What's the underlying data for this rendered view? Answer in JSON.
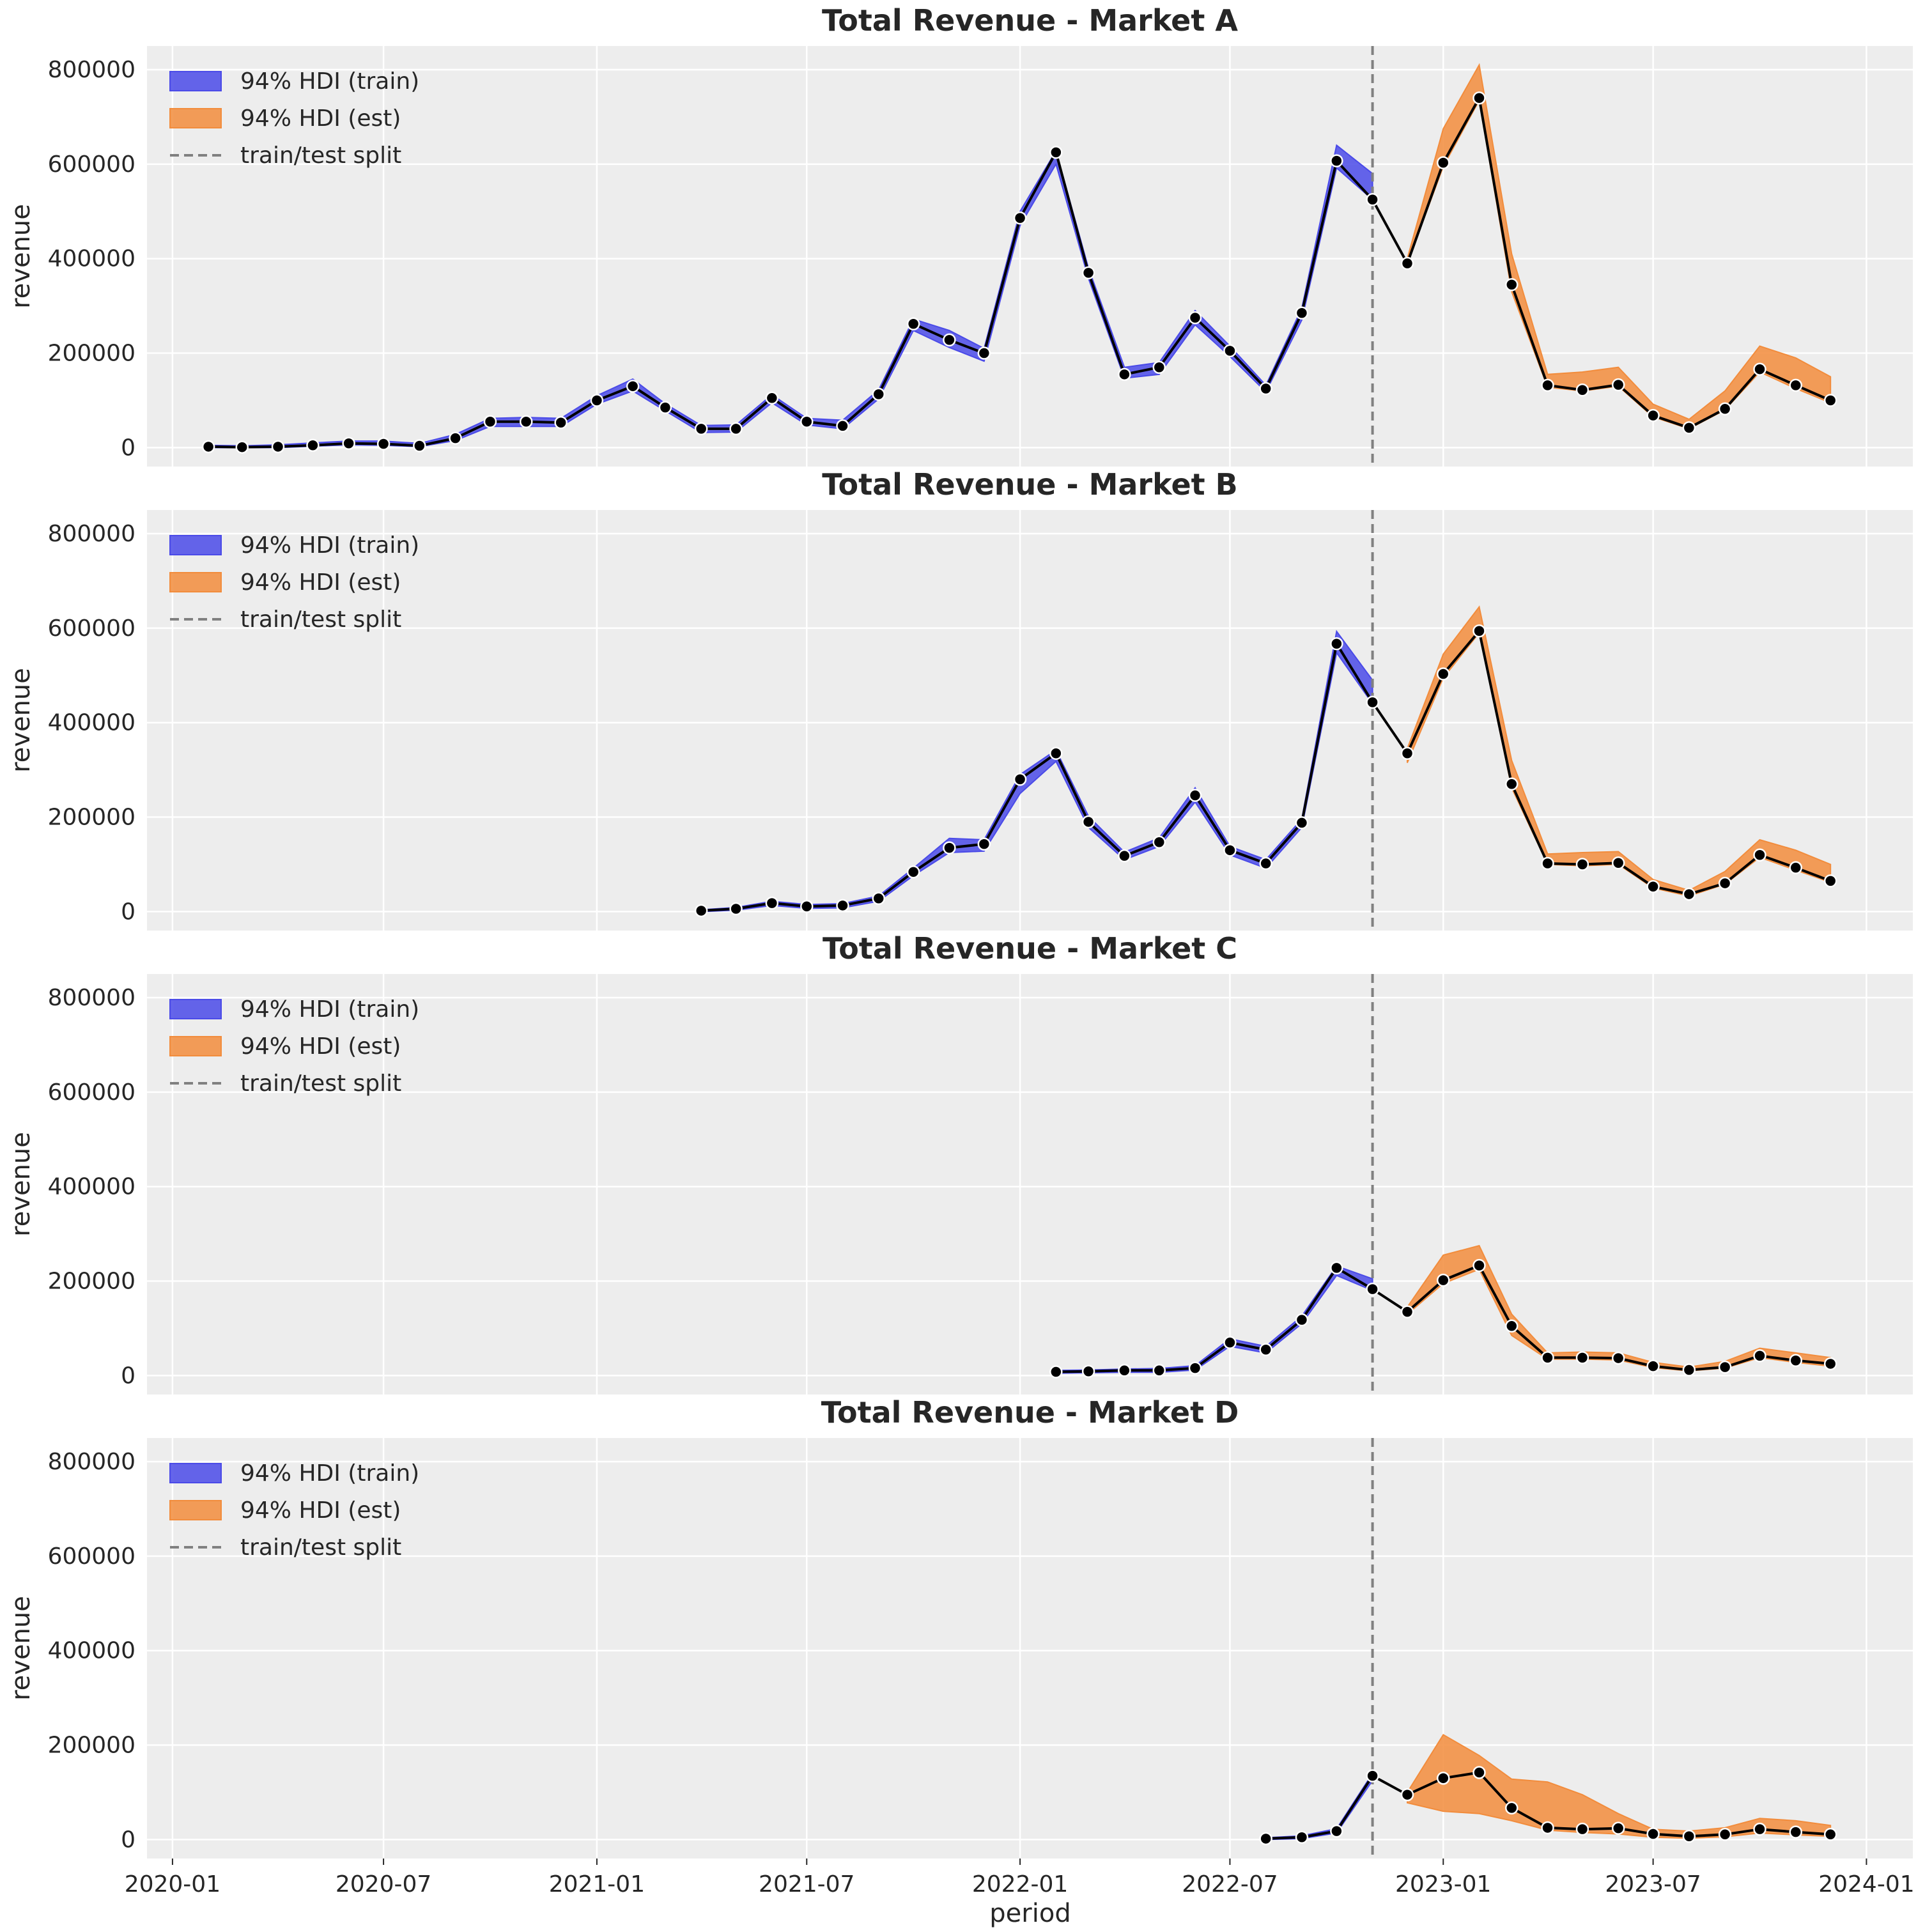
{
  "figure": {
    "xlabel": "period",
    "ylabel": "revenue",
    "x_ticks": [
      "2020-01",
      "2020-07",
      "2021-01",
      "2021-07",
      "2022-01",
      "2022-07",
      "2023-01",
      "2023-07",
      "2024-01"
    ],
    "y_ticks": [
      0,
      200000,
      400000,
      600000,
      800000
    ],
    "xlim": [
      "2019-12-10",
      "2024-02-10"
    ],
    "ylim": [
      -40000,
      850000
    ],
    "split_date": "2022-11-01",
    "grid": true,
    "background": "#ededed",
    "legend": {
      "placement": "top-left",
      "items": [
        {
          "label": "94% HDI (train)",
          "color": "#4a4ae8",
          "kind": "patch"
        },
        {
          "label": "94% HDI (est)",
          "color": "#f28c3c",
          "kind": "patch"
        },
        {
          "label": "train/test split",
          "color": "#808080",
          "kind": "dashed-line"
        }
      ]
    }
  },
  "chart_data": [
    {
      "type": "line",
      "title": "Total Revenue - Market A",
      "x": [
        "2020-02",
        "2020-03",
        "2020-04",
        "2020-05",
        "2020-06",
        "2020-07",
        "2020-08",
        "2020-09",
        "2020-10",
        "2020-11",
        "2020-12",
        "2021-01",
        "2021-02",
        "2021-03",
        "2021-04",
        "2021-05",
        "2021-06",
        "2021-07",
        "2021-08",
        "2021-09",
        "2021-10",
        "2021-11",
        "2021-12",
        "2022-01",
        "2022-02",
        "2022-03",
        "2022-04",
        "2022-05",
        "2022-06",
        "2022-07",
        "2022-08",
        "2022-09",
        "2022-10",
        "2022-11",
        "2022-12",
        "2023-01",
        "2023-02",
        "2023-03",
        "2023-04",
        "2023-05",
        "2023-06",
        "2023-07",
        "2023-08",
        "2023-09",
        "2023-10",
        "2023-11",
        "2023-12"
      ],
      "y": [
        2000,
        1000,
        2000,
        5000,
        9000,
        8000,
        4000,
        20000,
        55000,
        55000,
        53000,
        100000,
        130000,
        85000,
        40000,
        40000,
        105000,
        55000,
        46000,
        113000,
        262000,
        228000,
        200000,
        486000,
        625000,
        370000,
        155000,
        170000,
        275000,
        205000,
        125000,
        285000,
        607000,
        525000,
        390000,
        603000,
        740000,
        345000,
        132000,
        122000,
        133000,
        68000,
        42000,
        82000,
        166000,
        132000,
        100000
      ],
      "hdi_train": {
        "x": [
          "2020-02",
          "2020-03",
          "2020-04",
          "2020-05",
          "2020-06",
          "2020-07",
          "2020-08",
          "2020-09",
          "2020-10",
          "2020-11",
          "2020-12",
          "2021-01",
          "2021-02",
          "2021-03",
          "2021-04",
          "2021-05",
          "2021-06",
          "2021-07",
          "2021-08",
          "2021-09",
          "2021-10",
          "2021-11",
          "2021-12",
          "2022-01",
          "2022-02",
          "2022-03",
          "2022-04",
          "2022-05",
          "2022-06",
          "2022-07",
          "2022-08",
          "2022-09",
          "2022-10",
          "2022-11"
        ],
        "lower": [
          0,
          0,
          0,
          3000,
          6000,
          5000,
          2000,
          15000,
          45000,
          45000,
          45000,
          92000,
          120000,
          78000,
          32000,
          33000,
          95000,
          48000,
          40000,
          103000,
          248000,
          212000,
          183000,
          470000,
          600000,
          358000,
          147000,
          155000,
          260000,
          193000,
          118000,
          270000,
          592000,
          525000
        ],
        "upper": [
          5000,
          4000,
          6000,
          10000,
          14000,
          14000,
          9000,
          28000,
          62000,
          64000,
          62000,
          110000,
          145000,
          93000,
          47000,
          48000,
          112000,
          62000,
          58000,
          122000,
          272000,
          248000,
          210000,
          500000,
          628000,
          380000,
          170000,
          180000,
          290000,
          215000,
          132000,
          295000,
          640000,
          580000
        ]
      },
      "hdi_est": {
        "x": [
          "2022-12",
          "2023-01",
          "2023-02",
          "2023-03",
          "2023-04",
          "2023-05",
          "2023-06",
          "2023-07",
          "2023-08",
          "2023-09",
          "2023-10",
          "2023-11",
          "2023-12"
        ],
        "lower": [
          390000,
          595000,
          735000,
          330000,
          128000,
          120000,
          130000,
          65000,
          40000,
          80000,
          160000,
          125000,
          95000
        ],
        "upper": [
          400000,
          675000,
          810000,
          410000,
          155000,
          160000,
          170000,
          92000,
          60000,
          120000,
          215000,
          190000,
          150000
        ]
      }
    },
    {
      "type": "line",
      "title": "Total Revenue - Market B",
      "x": [
        "2021-04",
        "2021-05",
        "2021-06",
        "2021-07",
        "2021-08",
        "2021-09",
        "2021-10",
        "2021-11",
        "2021-12",
        "2022-01",
        "2022-02",
        "2022-03",
        "2022-04",
        "2022-05",
        "2022-06",
        "2022-07",
        "2022-08",
        "2022-09",
        "2022-10",
        "2022-11",
        "2022-12",
        "2023-01",
        "2023-02",
        "2023-03",
        "2023-04",
        "2023-05",
        "2023-06",
        "2023-07",
        "2023-08",
        "2023-09",
        "2023-10",
        "2023-11",
        "2023-12"
      ],
      "y": [
        2000,
        6000,
        18000,
        11000,
        13000,
        28000,
        84000,
        135000,
        143000,
        280000,
        335000,
        190000,
        118000,
        147000,
        246000,
        130000,
        102000,
        188000,
        567000,
        443000,
        335000,
        503000,
        594000,
        270000,
        102000,
        100000,
        103000,
        53000,
        37000,
        60000,
        120000,
        93000,
        65000
      ],
      "hdi_train": {
        "x": [
          "2021-04",
          "2021-05",
          "2021-06",
          "2021-07",
          "2021-08",
          "2021-09",
          "2021-10",
          "2021-11",
          "2021-12",
          "2022-01",
          "2022-02",
          "2022-03",
          "2022-04",
          "2022-05",
          "2022-06",
          "2022-07",
          "2022-08",
          "2022-09",
          "2022-10",
          "2022-11"
        ],
        "lower": [
          0,
          3000,
          13000,
          7000,
          8000,
          22000,
          76000,
          125000,
          128000,
          250000,
          318000,
          178000,
          110000,
          138000,
          232000,
          120000,
          92000,
          178000,
          548000,
          440000
        ],
        "upper": [
          4000,
          9000,
          22000,
          15000,
          17000,
          33000,
          92000,
          155000,
          152000,
          290000,
          342000,
          202000,
          126000,
          156000,
          262000,
          138000,
          110000,
          196000,
          593000,
          490000
        ]
      },
      "hdi_est": {
        "x": [
          "2022-12",
          "2023-01",
          "2023-02",
          "2023-03",
          "2023-04",
          "2023-05",
          "2023-06",
          "2023-07",
          "2023-08",
          "2023-09",
          "2023-10",
          "2023-11",
          "2023-12"
        ],
        "lower": [
          315000,
          495000,
          590000,
          262000,
          100000,
          97000,
          100000,
          50000,
          33000,
          58000,
          115000,
          88000,
          62000
        ],
        "upper": [
          345000,
          545000,
          645000,
          320000,
          122000,
          125000,
          127000,
          68000,
          45000,
          85000,
          152000,
          130000,
          100000
        ]
      }
    },
    {
      "type": "line",
      "title": "Total Revenue - Market C",
      "x": [
        "2022-02",
        "2022-03",
        "2022-04",
        "2022-05",
        "2022-06",
        "2022-07",
        "2022-08",
        "2022-09",
        "2022-10",
        "2022-11",
        "2022-12",
        "2023-01",
        "2023-02",
        "2023-03",
        "2023-04",
        "2023-05",
        "2023-06",
        "2023-07",
        "2023-08",
        "2023-09",
        "2023-10",
        "2023-11",
        "2023-12"
      ],
      "y": [
        8000,
        9000,
        11000,
        11000,
        16000,
        70000,
        55000,
        118000,
        228000,
        183000,
        135000,
        202000,
        233000,
        105000,
        38000,
        38000,
        37000,
        20000,
        12000,
        18000,
        42000,
        32000,
        25000
      ],
      "hdi_train": {
        "x": [
          "2022-02",
          "2022-03",
          "2022-04",
          "2022-05",
          "2022-06",
          "2022-07",
          "2022-08",
          "2022-09",
          "2022-10",
          "2022-11"
        ],
        "lower": [
          5000,
          6000,
          7000,
          7000,
          12000,
          62000,
          48000,
          110000,
          212000,
          180000
        ],
        "upper": [
          11000,
          12000,
          14000,
          15000,
          21000,
          78000,
          62000,
          126000,
          232000,
          205000
        ]
      },
      "hdi_est": {
        "x": [
          "2022-12",
          "2023-01",
          "2023-02",
          "2023-03",
          "2023-04",
          "2023-05",
          "2023-06",
          "2023-07",
          "2023-08",
          "2023-09",
          "2023-10",
          "2023-11",
          "2023-12"
        ],
        "lower": [
          130000,
          195000,
          225000,
          85000,
          35000,
          35000,
          33000,
          17000,
          10000,
          16000,
          38000,
          28000,
          20000
        ],
        "upper": [
          145000,
          255000,
          275000,
          130000,
          48000,
          50000,
          48000,
          28000,
          18000,
          30000,
          58000,
          48000,
          38000
        ]
      }
    },
    {
      "type": "line",
      "title": "Total Revenue - Market D",
      "x": [
        "2022-08",
        "2022-09",
        "2022-10",
        "2022-11",
        "2022-12",
        "2023-01",
        "2023-02",
        "2023-03",
        "2023-04",
        "2023-05",
        "2023-06",
        "2023-07",
        "2023-08",
        "2023-09",
        "2023-10",
        "2023-11",
        "2023-12"
      ],
      "y": [
        2000,
        5000,
        18000,
        135000,
        95000,
        130000,
        142000,
        67000,
        25000,
        22000,
        24000,
        12000,
        7000,
        11000,
        22000,
        16000,
        11000
      ],
      "hdi_train": {
        "x": [
          "2022-08",
          "2022-09",
          "2022-10",
          "2022-11"
        ],
        "lower": [
          0,
          2000,
          14000,
          125000
        ],
        "upper": [
          4000,
          8000,
          23000,
          140000
        ]
      },
      "hdi_est": {
        "x": [
          "2022-12",
          "2023-01",
          "2023-02",
          "2023-03",
          "2023-04",
          "2023-05",
          "2023-06",
          "2023-07",
          "2023-08",
          "2023-09",
          "2023-10",
          "2023-11",
          "2023-12"
        ],
        "lower": [
          78000,
          60000,
          55000,
          40000,
          20000,
          15000,
          12000,
          5000,
          3000,
          6000,
          14000,
          10000,
          7000
        ],
        "upper": [
          100000,
          222000,
          178000,
          128000,
          122000,
          95000,
          55000,
          22000,
          18000,
          25000,
          45000,
          40000,
          30000
        ]
      }
    }
  ]
}
